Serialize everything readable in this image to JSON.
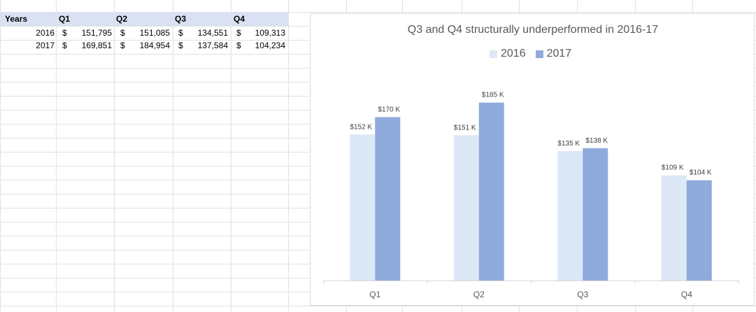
{
  "table": {
    "headers": [
      "Years",
      "Q1",
      "Q2",
      "Q3",
      "Q4"
    ],
    "rows": [
      {
        "year": "2016",
        "values": [
          "151,795",
          "151,085",
          "134,551",
          "109,313"
        ]
      },
      {
        "year": "2017",
        "values": [
          "169,851",
          "184,954",
          "137,584",
          "104,234"
        ]
      }
    ],
    "currency": "$"
  },
  "chart_data": {
    "type": "bar",
    "title": "Q3 and Q4 structurally underperformed in 2016-17",
    "categories": [
      "Q1",
      "Q2",
      "Q3",
      "Q4"
    ],
    "series": [
      {
        "name": "2016",
        "values": [
          151795,
          151085,
          134551,
          109313
        ],
        "labels": [
          "$152 K",
          "$151 K",
          "$135 K",
          "$109 K"
        ],
        "color": "#dde8f6"
      },
      {
        "name": "2017",
        "values": [
          169851,
          184954,
          137584,
          104234
        ],
        "labels": [
          "$170 K",
          "$185 K",
          "$138 K",
          "$104 K"
        ],
        "color": "#8faadc"
      }
    ],
    "ylim": [
      0,
      200000
    ],
    "legend": "top",
    "grid": false
  }
}
